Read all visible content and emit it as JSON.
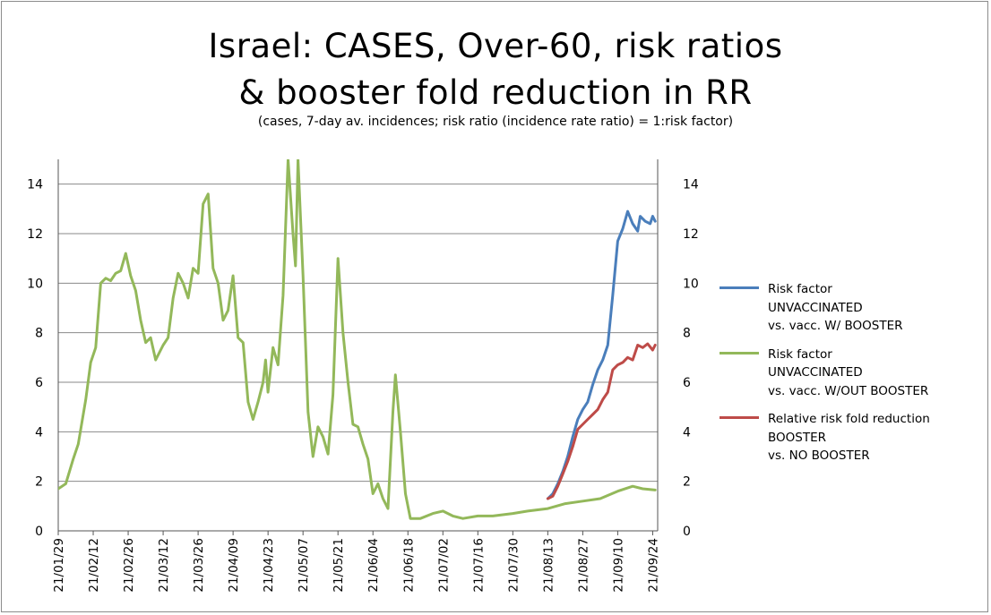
{
  "title_line1": "Israel: CASES, Over-60, risk ratios",
  "title_line2": "& booster fold reduction in RR",
  "subtitle": "(cases, 7-day av. incidences; risk ratio (incidence rate ratio) = 1:risk factor)",
  "legend": [
    {
      "lines": [
        "Risk factor",
        "UNVACCINATED",
        "vs. vacc. W/ BOOSTER"
      ],
      "color": "#4a7ebb"
    },
    {
      "lines": [
        "Risk factor",
        "UNVACCINATED",
        "vs. vacc. W/OUT BOOSTER"
      ],
      "color": "#93b85a"
    },
    {
      "lines": [
        "Relative risk fold reduction",
        "BOOSTER",
        "vs. NO BOOSTER"
      ],
      "color": "#be4b48"
    }
  ],
  "chart_data": {
    "type": "line",
    "title": "Israel: CASES, Over-60, risk ratios & booster fold reduction in RR",
    "subtitle": "(cases, 7-day av. incidences; risk ratio (incidence rate ratio) = 1:risk factor)",
    "x_range": [
      "21/01/29",
      "21/09/26"
    ],
    "x_ticks": [
      "21/01/29",
      "21/02/12",
      "21/02/26",
      "21/03/12",
      "21/03/26",
      "21/04/09",
      "21/04/23",
      "21/05/07",
      "21/05/21",
      "21/06/04",
      "21/06/18",
      "21/07/02",
      "21/07/16",
      "21/07/30",
      "21/08/13",
      "21/08/27",
      "21/09/10",
      "21/09/24"
    ],
    "ylim": [
      0,
      15
    ],
    "y_ticks": [
      0,
      2,
      4,
      6,
      8,
      10,
      12,
      14
    ],
    "y_axis_right_ticks": [
      0,
      2,
      4,
      6,
      8,
      10,
      12,
      14
    ],
    "grid": "horizontal",
    "legend_position": "right",
    "series": [
      {
        "name": "Risk factor UNVACCINATED vs. vacc. W/ BOOSTER",
        "color": "#4a7ebb",
        "points": [
          [
            "21/08/13",
            1.3
          ],
          [
            "21/08/15",
            1.5
          ],
          [
            "21/08/17",
            1.9
          ],
          [
            "21/08/19",
            2.4
          ],
          [
            "21/08/21",
            3.0
          ],
          [
            "21/08/23",
            3.8
          ],
          [
            "21/08/25",
            4.5
          ],
          [
            "21/08/27",
            4.9
          ],
          [
            "21/08/29",
            5.2
          ],
          [
            "21/08/31",
            5.9
          ],
          [
            "21/09/02",
            6.5
          ],
          [
            "21/09/04",
            6.9
          ],
          [
            "21/09/06",
            7.5
          ],
          [
            "21/09/08",
            9.5
          ],
          [
            "21/09/10",
            11.7
          ],
          [
            "21/09/12",
            12.2
          ],
          [
            "21/09/14",
            12.9
          ],
          [
            "21/09/16",
            12.4
          ],
          [
            "21/09/18",
            12.1
          ],
          [
            "21/09/19",
            12.7
          ],
          [
            "21/09/21",
            12.5
          ],
          [
            "21/09/23",
            12.4
          ],
          [
            "21/09/24",
            12.7
          ],
          [
            "21/09/25",
            12.5
          ]
        ]
      },
      {
        "name": "Risk factor UNVACCINATED vs. vacc. W/OUT BOOSTER",
        "color": "#93b85a",
        "points": [
          [
            "21/01/29",
            1.7
          ],
          [
            "21/02/01",
            1.9
          ],
          [
            "21/02/04",
            2.9
          ],
          [
            "21/02/06",
            3.5
          ],
          [
            "21/02/09",
            5.3
          ],
          [
            "21/02/11",
            6.8
          ],
          [
            "21/02/13",
            7.4
          ],
          [
            "21/02/15",
            10.0
          ],
          [
            "21/02/17",
            10.2
          ],
          [
            "21/02/19",
            10.1
          ],
          [
            "21/02/21",
            10.4
          ],
          [
            "21/02/23",
            10.5
          ],
          [
            "21/02/25",
            11.2
          ],
          [
            "21/02/27",
            10.3
          ],
          [
            "21/03/01",
            9.7
          ],
          [
            "21/03/03",
            8.5
          ],
          [
            "21/03/05",
            7.6
          ],
          [
            "21/03/07",
            7.8
          ],
          [
            "21/03/09",
            6.9
          ],
          [
            "21/03/12",
            7.5
          ],
          [
            "21/03/14",
            7.8
          ],
          [
            "21/03/16",
            9.4
          ],
          [
            "21/03/18",
            10.4
          ],
          [
            "21/03/20",
            10.0
          ],
          [
            "21/03/22",
            9.4
          ],
          [
            "21/03/24",
            10.6
          ],
          [
            "21/03/26",
            10.4
          ],
          [
            "21/03/28",
            13.2
          ],
          [
            "21/03/30",
            13.6
          ],
          [
            "21/04/01",
            10.6
          ],
          [
            "21/04/03",
            10.0
          ],
          [
            "21/04/05",
            8.5
          ],
          [
            "21/04/07",
            8.9
          ],
          [
            "21/04/09",
            10.3
          ],
          [
            "21/04/11",
            7.8
          ],
          [
            "21/04/13",
            7.6
          ],
          [
            "21/04/15",
            5.2
          ],
          [
            "21/04/17",
            4.5
          ],
          [
            "21/04/19",
            5.2
          ],
          [
            "21/04/21",
            6.0
          ],
          [
            "21/04/22",
            6.9
          ],
          [
            "21/04/23",
            5.6
          ],
          [
            "21/04/25",
            7.4
          ],
          [
            "21/04/27",
            6.7
          ],
          [
            "21/04/29",
            9.5
          ],
          [
            "21/05/01",
            15.0
          ],
          [
            "21/05/03",
            12.0
          ],
          [
            "21/05/04",
            10.7
          ],
          [
            "21/05/05",
            15.0
          ],
          [
            "21/05/07",
            10.3
          ],
          [
            "21/05/09",
            4.8
          ],
          [
            "21/05/11",
            3.0
          ],
          [
            "21/05/13",
            4.2
          ],
          [
            "21/05/15",
            3.8
          ],
          [
            "21/05/17",
            3.1
          ],
          [
            "21/05/19",
            5.5
          ],
          [
            "21/05/21",
            11.0
          ],
          [
            "21/05/23",
            8.0
          ],
          [
            "21/05/25",
            6.0
          ],
          [
            "21/05/27",
            4.3
          ],
          [
            "21/05/29",
            4.2
          ],
          [
            "21/05/31",
            3.5
          ],
          [
            "21/06/02",
            2.9
          ],
          [
            "21/06/04",
            1.5
          ],
          [
            "21/06/06",
            1.9
          ],
          [
            "21/06/08",
            1.3
          ],
          [
            "21/06/10",
            0.9
          ],
          [
            "21/06/12",
            4.8
          ],
          [
            "21/06/13",
            6.3
          ],
          [
            "21/06/15",
            4.0
          ],
          [
            "21/06/17",
            1.5
          ],
          [
            "21/06/19",
            0.5
          ],
          [
            "21/06/23",
            0.5
          ],
          [
            "21/06/28",
            0.7
          ],
          [
            "21/07/02",
            0.8
          ],
          [
            "21/07/06",
            0.6
          ],
          [
            "21/07/10",
            0.5
          ],
          [
            "21/07/16",
            0.6
          ],
          [
            "21/07/22",
            0.6
          ],
          [
            "21/07/30",
            0.7
          ],
          [
            "21/08/05",
            0.8
          ],
          [
            "21/08/13",
            0.9
          ],
          [
            "21/08/20",
            1.1
          ],
          [
            "21/08/27",
            1.2
          ],
          [
            "21/09/03",
            1.3
          ],
          [
            "21/09/10",
            1.6
          ],
          [
            "21/09/16",
            1.8
          ],
          [
            "21/09/20",
            1.7
          ],
          [
            "21/09/25",
            1.65
          ]
        ]
      },
      {
        "name": "Relative risk fold reduction BOOSTER vs. NO BOOSTER",
        "color": "#be4b48",
        "points": [
          [
            "21/08/13",
            1.3
          ],
          [
            "21/08/15",
            1.4
          ],
          [
            "21/08/17",
            1.8
          ],
          [
            "21/08/19",
            2.3
          ],
          [
            "21/08/21",
            2.8
          ],
          [
            "21/08/23",
            3.4
          ],
          [
            "21/08/25",
            4.1
          ],
          [
            "21/08/27",
            4.3
          ],
          [
            "21/08/29",
            4.5
          ],
          [
            "21/08/31",
            4.7
          ],
          [
            "21/09/02",
            4.9
          ],
          [
            "21/09/04",
            5.3
          ],
          [
            "21/09/06",
            5.6
          ],
          [
            "21/09/08",
            6.5
          ],
          [
            "21/09/10",
            6.7
          ],
          [
            "21/09/12",
            6.8
          ],
          [
            "21/09/14",
            7.0
          ],
          [
            "21/09/16",
            6.9
          ],
          [
            "21/09/18",
            7.5
          ],
          [
            "21/09/20",
            7.4
          ],
          [
            "21/09/22",
            7.55
          ],
          [
            "21/09/24",
            7.3
          ],
          [
            "21/09/25",
            7.5
          ]
        ]
      }
    ]
  }
}
